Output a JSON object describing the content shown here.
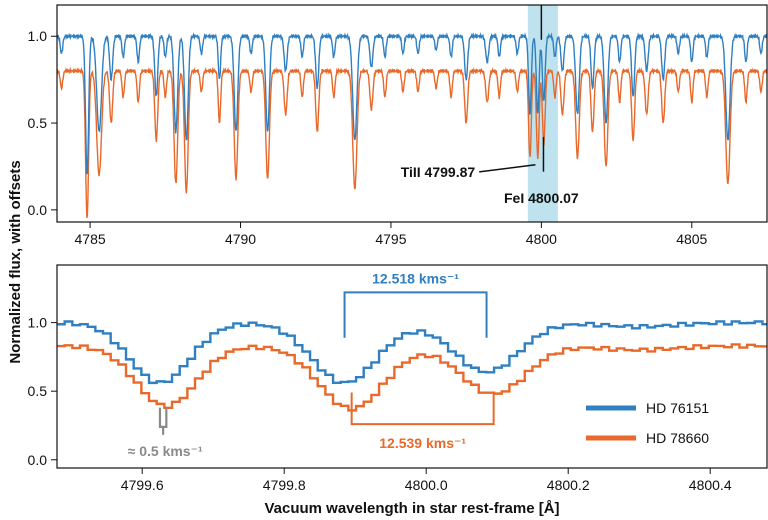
{
  "colors": {
    "hd76151": "#2f7fc1",
    "hd78660": "#e8692a",
    "highlight": "#bfe3ee",
    "gray": "#8a8a8a",
    "ink": "#111111"
  },
  "chart_data": [
    {
      "type": "line",
      "panel": "top",
      "xlim": [
        4783.9,
        4807.5
      ],
      "ylim": [
        -0.07,
        1.18
      ],
      "xticks": [
        4785,
        4790,
        4795,
        4800,
        4805
      ],
      "xtick_labels": [
        "4785",
        "4790",
        "4795",
        "4800",
        "4805"
      ],
      "yticks": [
        0.0,
        0.5,
        1.0
      ],
      "ytick_labels": [
        "0.0",
        "0.5",
        "1.0"
      ],
      "highlight_band": [
        4799.55,
        4800.55
      ],
      "continuum": {
        "HD 76151": 1.0,
        "HD 78660": 0.8
      },
      "series": [
        {
          "name": "HD 76151",
          "offset": 0.0,
          "lines": [
            [
              4784.05,
              0.1,
              0.04
            ],
            [
              4784.9,
              0.8,
              0.05
            ],
            [
              4785.3,
              0.55,
              0.08
            ],
            [
              4785.7,
              0.25,
              0.05
            ],
            [
              4786.1,
              0.12,
              0.04
            ],
            [
              4786.6,
              0.15,
              0.04
            ],
            [
              4787.2,
              0.35,
              0.05
            ],
            [
              4787.5,
              0.12,
              0.04
            ],
            [
              4787.85,
              0.55,
              0.06
            ],
            [
              4788.2,
              0.6,
              0.06
            ],
            [
              4788.7,
              0.1,
              0.04
            ],
            [
              4789.3,
              0.25,
              0.04
            ],
            [
              4789.85,
              0.55,
              0.06
            ],
            [
              4790.35,
              0.1,
              0.04
            ],
            [
              4790.9,
              0.55,
              0.06
            ],
            [
              4791.5,
              0.2,
              0.05
            ],
            [
              4792.05,
              0.12,
              0.04
            ],
            [
              4792.55,
              0.3,
              0.05
            ],
            [
              4793.1,
              0.12,
              0.04
            ],
            [
              4793.8,
              0.6,
              0.07
            ],
            [
              4794.35,
              0.18,
              0.05
            ],
            [
              4794.8,
              0.12,
              0.04
            ],
            [
              4795.4,
              0.1,
              0.04
            ],
            [
              4795.9,
              0.1,
              0.04
            ],
            [
              4796.5,
              0.08,
              0.04
            ],
            [
              4797.0,
              0.12,
              0.04
            ],
            [
              4797.5,
              0.25,
              0.05
            ],
            [
              4798.2,
              0.15,
              0.05
            ],
            [
              4798.6,
              0.12,
              0.04
            ],
            [
              4799.2,
              0.1,
              0.04
            ],
            [
              4799.62,
              0.45,
              0.045
            ],
            [
              4799.88,
              0.45,
              0.045
            ],
            [
              4800.08,
              0.38,
              0.045
            ],
            [
              4800.45,
              0.12,
              0.04
            ],
            [
              4800.7,
              0.2,
              0.05
            ],
            [
              4801.2,
              0.45,
              0.06
            ],
            [
              4801.7,
              0.3,
              0.05
            ],
            [
              4802.15,
              0.5,
              0.06
            ],
            [
              4802.6,
              0.15,
              0.04
            ],
            [
              4803.05,
              0.35,
              0.05
            ],
            [
              4803.5,
              0.2,
              0.05
            ],
            [
              4804.05,
              0.25,
              0.05
            ],
            [
              4804.55,
              0.1,
              0.04
            ],
            [
              4805.0,
              0.15,
              0.04
            ],
            [
              4805.5,
              0.12,
              0.04
            ],
            [
              4806.2,
              0.6,
              0.07
            ],
            [
              4806.8,
              0.15,
              0.04
            ],
            [
              4807.3,
              0.1,
              0.04
            ]
          ]
        },
        {
          "name": "HD 78660",
          "offset": -0.2,
          "lines": [
            [
              4784.05,
              0.1,
              0.04
            ],
            [
              4784.9,
              0.85,
              0.05
            ],
            [
              4785.3,
              0.6,
              0.08
            ],
            [
              4785.7,
              0.3,
              0.05
            ],
            [
              4786.1,
              0.15,
              0.04
            ],
            [
              4786.6,
              0.18,
              0.04
            ],
            [
              4787.2,
              0.4,
              0.05
            ],
            [
              4787.5,
              0.15,
              0.04
            ],
            [
              4787.85,
              0.65,
              0.06
            ],
            [
              4788.2,
              0.7,
              0.06
            ],
            [
              4788.7,
              0.12,
              0.04
            ],
            [
              4789.3,
              0.3,
              0.04
            ],
            [
              4789.85,
              0.62,
              0.06
            ],
            [
              4790.35,
              0.12,
              0.04
            ],
            [
              4790.9,
              0.62,
              0.06
            ],
            [
              4791.5,
              0.25,
              0.05
            ],
            [
              4792.05,
              0.15,
              0.04
            ],
            [
              4792.55,
              0.35,
              0.05
            ],
            [
              4793.1,
              0.15,
              0.04
            ],
            [
              4793.8,
              0.68,
              0.07
            ],
            [
              4794.35,
              0.22,
              0.05
            ],
            [
              4794.8,
              0.15,
              0.04
            ],
            [
              4795.4,
              0.12,
              0.04
            ],
            [
              4795.9,
              0.12,
              0.04
            ],
            [
              4796.5,
              0.1,
              0.04
            ],
            [
              4797.0,
              0.15,
              0.04
            ],
            [
              4797.5,
              0.3,
              0.05
            ],
            [
              4798.2,
              0.18,
              0.05
            ],
            [
              4798.6,
              0.15,
              0.04
            ],
            [
              4799.2,
              0.12,
              0.04
            ],
            [
              4799.62,
              0.5,
              0.045
            ],
            [
              4799.88,
              0.5,
              0.045
            ],
            [
              4800.08,
              0.42,
              0.045
            ],
            [
              4800.45,
              0.15,
              0.04
            ],
            [
              4800.7,
              0.25,
              0.05
            ],
            [
              4801.2,
              0.5,
              0.06
            ],
            [
              4801.7,
              0.35,
              0.05
            ],
            [
              4802.15,
              0.55,
              0.06
            ],
            [
              4802.6,
              0.18,
              0.04
            ],
            [
              4803.05,
              0.4,
              0.05
            ],
            [
              4803.5,
              0.25,
              0.05
            ],
            [
              4804.05,
              0.3,
              0.05
            ],
            [
              4804.55,
              0.12,
              0.04
            ],
            [
              4805.0,
              0.18,
              0.04
            ],
            [
              4805.5,
              0.15,
              0.04
            ],
            [
              4806.2,
              0.65,
              0.07
            ],
            [
              4806.8,
              0.18,
              0.04
            ],
            [
              4807.3,
              0.12,
              0.04
            ]
          ]
        }
      ],
      "annotations": [
        {
          "text": "TiII 4799.87",
          "point": [
            4799.87,
            0.45
          ],
          "text_at": [
            4797.8,
            0.19
          ]
        },
        {
          "text": "FeI 4800.07",
          "point": [
            4800.07,
            0.42
          ],
          "text_at": [
            4800.0,
            0.12
          ]
        }
      ]
    },
    {
      "type": "line",
      "panel": "bottom",
      "xlim": [
        4799.48,
        4800.48
      ],
      "ylim": [
        -0.06,
        1.42
      ],
      "xticks": [
        4799.6,
        4799.8,
        4800.0,
        4800.2,
        4800.4
      ],
      "xtick_labels": [
        "4799.6",
        "4799.8",
        "4800.0",
        "4800.2",
        "4800.4"
      ],
      "yticks": [
        0.0,
        0.5,
        1.0
      ],
      "ytick_labels": [
        "0.0",
        "0.5",
        "1.0"
      ],
      "xlabel": "Vacuum wavelength in star rest-frame [Å]",
      "step": 0.0108,
      "series": [
        {
          "name": "HD 76151",
          "continuum": 1.0,
          "lines": [
            [
              4799.625,
              0.44,
              0.042
            ],
            [
              4799.885,
              0.44,
              0.045
            ],
            [
              4800.085,
              0.36,
              0.045
            ],
            [
              4800.3,
              0.03,
              0.05
            ]
          ]
        },
        {
          "name": "HD 78660",
          "continuum": 0.83,
          "lines": [
            [
              4799.634,
              0.44,
              0.042
            ],
            [
              4799.895,
              0.46,
              0.045
            ],
            [
              4800.095,
              0.35,
              0.045
            ],
            [
              4800.3,
              0.03,
              0.05
            ]
          ]
        }
      ],
      "annotations": [
        {
          "text": "12.518 kms⁻¹",
          "series": "HD 76151",
          "bracket": [
            4799.885,
            4800.085
          ],
          "bracket_y": 1.22,
          "leg_y": 0.89
        },
        {
          "text": "12.539 kms⁻¹",
          "series": "HD 78660",
          "bracket": [
            4799.895,
            4800.095
          ],
          "bracket_y": 0.26,
          "leg_y": 0.49
        },
        {
          "text": "≈ 0.5 kms⁻¹",
          "series": "gray",
          "bracket": [
            4799.625,
            4799.634
          ],
          "bracket_y": 0.24,
          "leg_y": 0.38
        }
      ],
      "legend": {
        "position": "lower-right",
        "entries": [
          "HD 76151",
          "HD 78660"
        ]
      }
    }
  ],
  "shared_ylabel": "Normalized flux, with offsets"
}
